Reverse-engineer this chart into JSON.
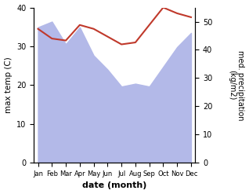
{
  "months": [
    "Jan",
    "Feb",
    "Mar",
    "Apr",
    "May",
    "Jun",
    "Jul",
    "Aug",
    "Sep",
    "Oct",
    "Nov",
    "Dec"
  ],
  "temp_line": [
    34.5,
    32.0,
    31.5,
    35.5,
    34.5,
    32.5,
    30.5,
    31.0,
    35.5,
    40.0,
    38.5,
    37.5
  ],
  "precip_mm": [
    48,
    50,
    42,
    48,
    38,
    33,
    27,
    28,
    27,
    34,
    41,
    46
  ],
  "xlabel": "date (month)",
  "ylabel_left": "max temp (C)",
  "ylabel_right": "med. precipitation\n(kg/m2)",
  "ylim_left": [
    0,
    40
  ],
  "ylim_right": [
    0,
    55
  ],
  "yticks_left": [
    0,
    10,
    20,
    30,
    40
  ],
  "yticks_right": [
    0,
    10,
    20,
    30,
    40,
    50
  ],
  "area_color": "#b3b9e8",
  "line_color": "#c0392b",
  "bg_color": "#ffffff"
}
